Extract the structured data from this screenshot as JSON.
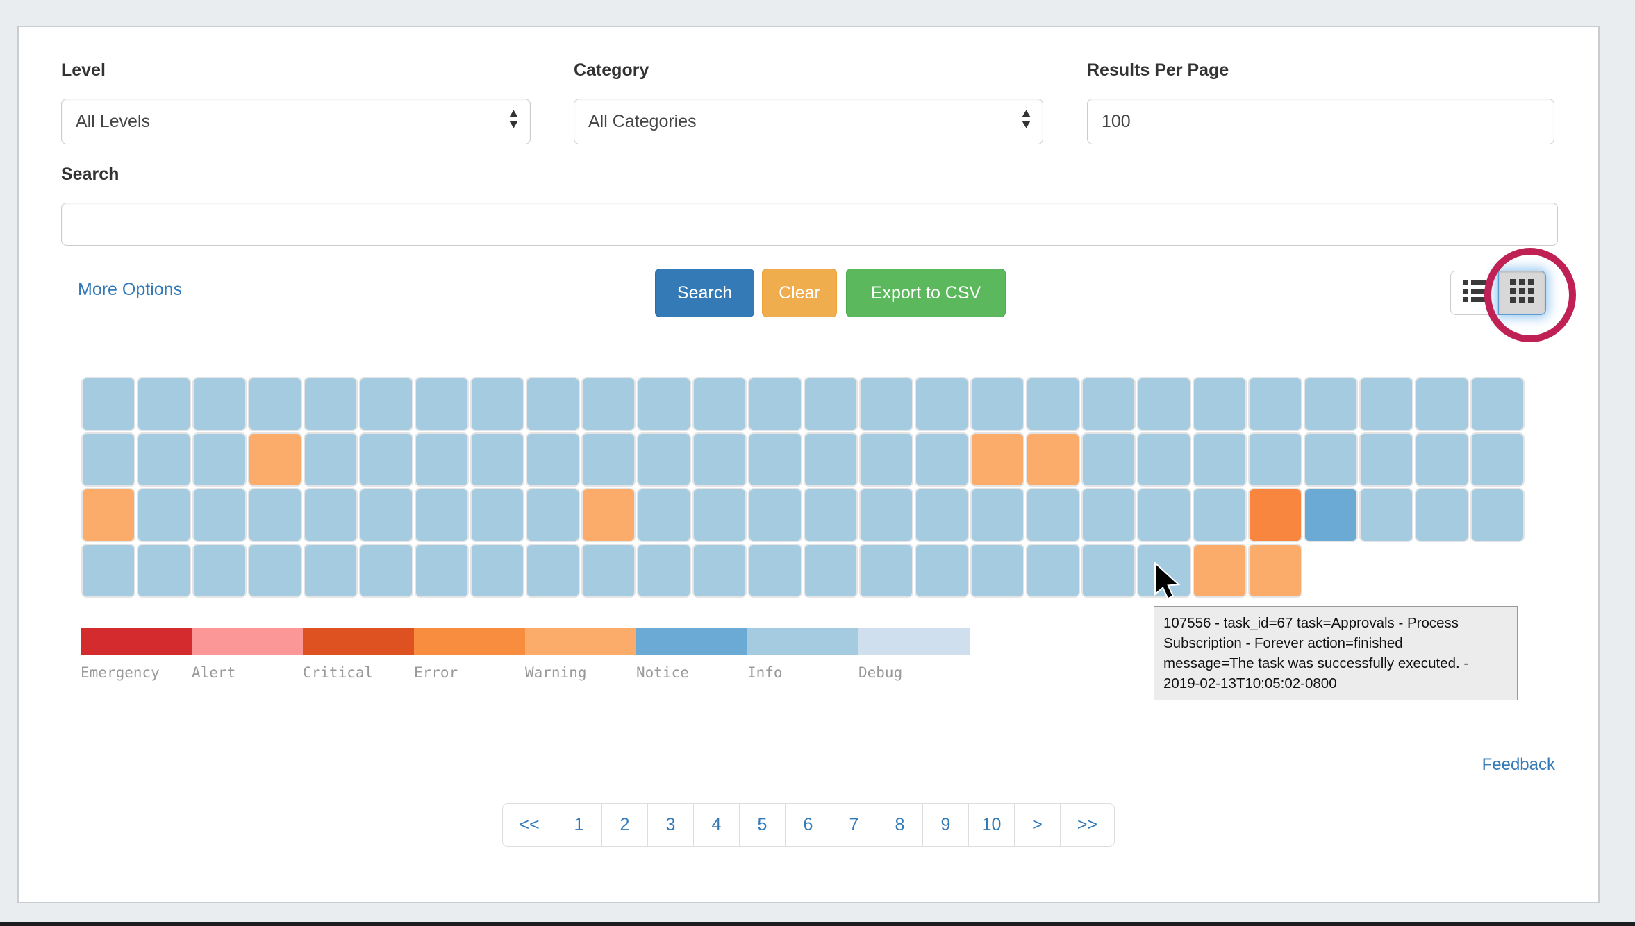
{
  "filters": {
    "level": {
      "label": "Level",
      "value": "All Levels"
    },
    "category": {
      "label": "Category",
      "value": "All Categories"
    },
    "results_per_page": {
      "label": "Results Per Page",
      "value": "100"
    },
    "search": {
      "label": "Search",
      "value": ""
    }
  },
  "actions": {
    "more_options_link": "More Options",
    "search_button": "Search",
    "clear_button": "Clear",
    "export_csv_button": "Export to CSV"
  },
  "view_toggle": {
    "options": [
      "list",
      "grid"
    ],
    "active": "grid"
  },
  "heatmap": {
    "cell_colors": {
      "info": "#a5cbe1",
      "warning": "#fbac6b",
      "error": "#f9863f",
      "notice": "#6aaad4"
    },
    "rows": [
      [
        "info",
        "info",
        "info",
        "info",
        "info",
        "info",
        "info",
        "info",
        "info",
        "info",
        "info",
        "info",
        "info",
        "info",
        "info",
        "info",
        "info",
        "info",
        "info",
        "info",
        "info",
        "info",
        "info",
        "info",
        "info",
        "info"
      ],
      [
        "info",
        "info",
        "info",
        "warning",
        "info",
        "info",
        "info",
        "info",
        "info",
        "info",
        "info",
        "info",
        "info",
        "info",
        "info",
        "info",
        "warning",
        "warning",
        "info",
        "info",
        "info",
        "info",
        "info",
        "info",
        "info",
        "info"
      ],
      [
        "warning",
        "info",
        "info",
        "info",
        "info",
        "info",
        "info",
        "info",
        "info",
        "warning",
        "info",
        "info",
        "info",
        "info",
        "info",
        "info",
        "info",
        "info",
        "info",
        "info",
        "info",
        "error",
        "notice",
        "info",
        "info",
        "info"
      ],
      [
        "info",
        "info",
        "info",
        "info",
        "info",
        "info",
        "info",
        "info",
        "info",
        "info",
        "info",
        "info",
        "info",
        "info",
        "info",
        "info",
        "info",
        "info",
        "info",
        "info",
        "warning",
        "warning"
      ]
    ],
    "legend": [
      {
        "label": "Emergency",
        "color": "#d32b2e"
      },
      {
        "label": "Alert",
        "color": "#fb9897"
      },
      {
        "label": "Critical",
        "color": "#dd5220"
      },
      {
        "label": "Error",
        "color": "#f98d3f"
      },
      {
        "label": "Warning",
        "color": "#fbac6b"
      },
      {
        "label": "Notice",
        "color": "#6aaad4"
      },
      {
        "label": "Info",
        "color": "#a5cbe1"
      },
      {
        "label": "Debug",
        "color": "#cfdfee"
      }
    ]
  },
  "tooltip": {
    "lines": [
      "107556 - task_id=67 task=Approvals - Process",
      "Subscription - Forever action=finished",
      "message=The task was successfully executed. -",
      "2019-02-13T10:05:02-0800"
    ]
  },
  "pagination": {
    "items": [
      "<<",
      "1",
      "2",
      "3",
      "4",
      "5",
      "6",
      "7",
      "8",
      "9",
      "10",
      ">",
      ">>"
    ]
  },
  "links": {
    "feedback": "Feedback"
  },
  "colors": {
    "accent_blue": "#337ab7",
    "clear_orange": "#f0ad4e",
    "export_green": "#5cb85c",
    "annotation_circle": "#bf2155",
    "page_background": "#e9edf0"
  }
}
